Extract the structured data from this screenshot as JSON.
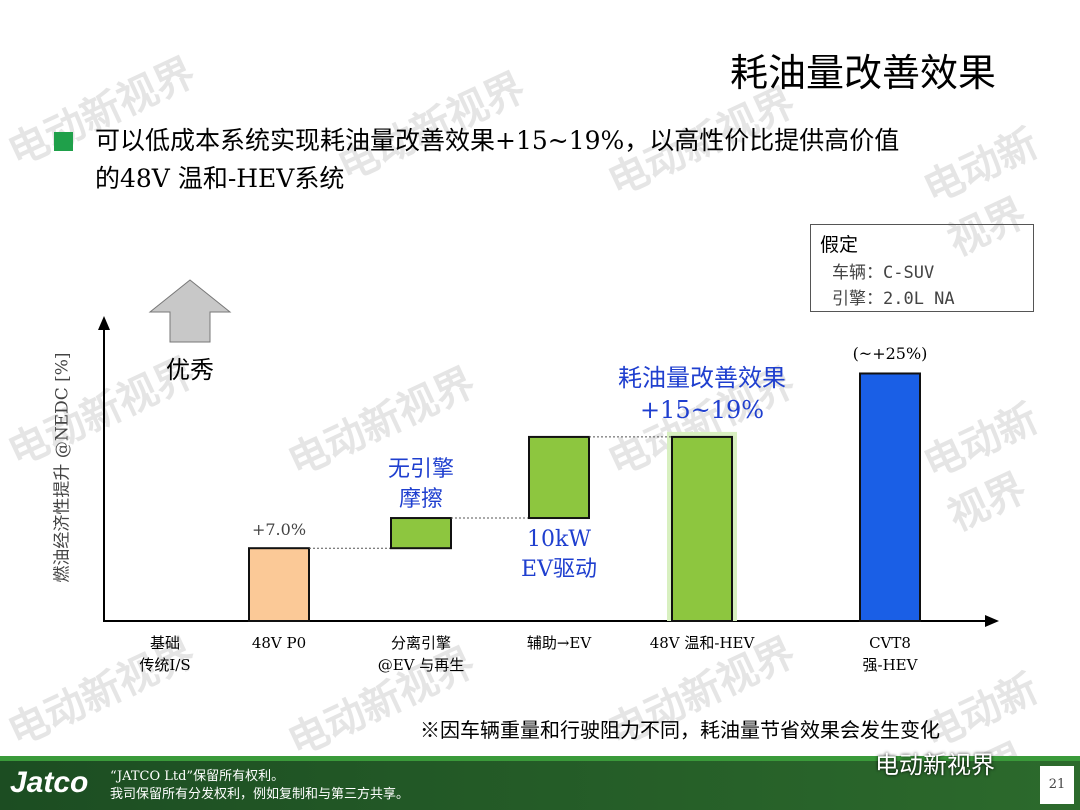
{
  "title": "耗油量改善效果",
  "bullet": "可以低成本系统实现耗油量改善效果+15~19%，以高性价比提供高价值\n的48V 温和-HEV系统",
  "assumption": {
    "heading": "假定",
    "lines": [
      "车辆：C-SUV",
      "引擎：2.0L NA"
    ]
  },
  "chart_data": {
    "type": "waterfall",
    "y_label": "燃油经济性提升 @NEDC [%]",
    "better_label": "优秀",
    "categories": [
      "基础\n传统I/S",
      "48V P0",
      "分离引擎\n@EV 与再生",
      "辅助→EV",
      "48V 温和-HEV",
      "CVT8\n强-HEV"
    ],
    "values": [
      null,
      7.0,
      2.9,
      7.8,
      17.7,
      23.8
    ],
    "value_labels": [
      null,
      "+7.0%",
      null,
      null,
      null,
      null
    ],
    "measure": [
      "absolute",
      "absolute",
      "relative",
      "relative",
      "absolute",
      "absolute"
    ],
    "colors": [
      "#8dc63f",
      "#fbc997",
      "#8dc63f",
      "#8dc63f",
      "#8dc63f",
      "#1a5fe6"
    ],
    "ylim": [
      0,
      25
    ],
    "annotations": [
      "无引擎\n摩擦",
      "10kW\nEV驱动",
      "耗油量改善效果\n+15~19%",
      "(~+25%)"
    ]
  },
  "footnote": "※因车辆重量和行驶阻力不同，耗油量节省效果会发生变化",
  "footer": {
    "logo": "Jatco",
    "rights": "“JATCO Ltd”保留所有权利。\n我司保留所有分发权利，例如复制和与第三方共享。",
    "page": "21"
  },
  "watermark": "电动新视界"
}
